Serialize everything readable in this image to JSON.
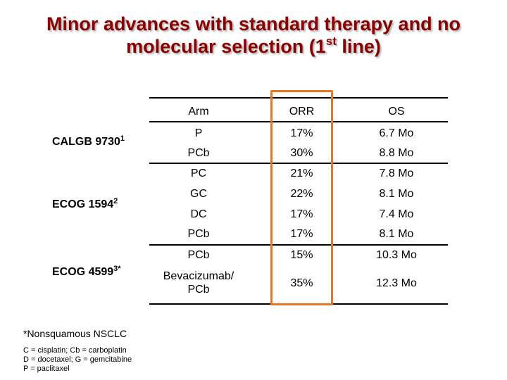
{
  "title": {
    "line1": "Minor advances with standard therapy and no",
    "line2_prefix": "molecular selection (1",
    "line2_sup": "st",
    "line2_suffix": " line)"
  },
  "table": {
    "headers": {
      "arm": "Arm",
      "orr": "ORR",
      "os": "OS"
    },
    "rows": [
      {
        "arm": "P",
        "orr": "17%",
        "os": "6.7 Mo"
      },
      {
        "arm": "PCb",
        "orr": "30%",
        "os": "8.8 Mo"
      },
      {
        "arm": "PC",
        "orr": "21%",
        "os": "7.8 Mo"
      },
      {
        "arm": "GC",
        "orr": "22%",
        "os": "8.1 Mo"
      },
      {
        "arm": "DC",
        "orr": "17%",
        "os": "7.4 Mo"
      },
      {
        "arm": "PCb",
        "orr": "17%",
        "os": "8.1 Mo"
      },
      {
        "arm": "PCb",
        "orr": "15%",
        "os": "10.3 Mo"
      },
      {
        "arm_line1": "Bevacizumab/",
        "arm_line2": "PCb",
        "orr": "35%",
        "os": "12.3 Mo"
      }
    ]
  },
  "studies": [
    {
      "name": "CALGB 9730",
      "sup": "1"
    },
    {
      "name": "ECOG 1594",
      "sup": "2"
    },
    {
      "name": "ECOG 4599",
      "sup": "3*"
    }
  ],
  "footnote": "*Nonsquamous NSCLC",
  "abbreviations": [
    "C = cisplatin; Cb = carboplatin",
    "D = docetaxel; G = gemcitabine",
    "P = paclitaxel"
  ],
  "colors": {
    "title": "#8b0000",
    "highlight_box": "#e87722"
  }
}
